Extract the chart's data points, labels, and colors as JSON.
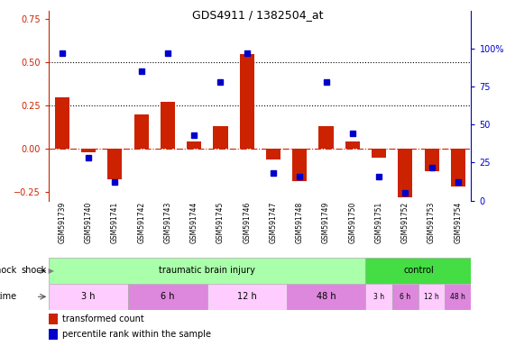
{
  "title": "GDS4911 / 1382504_at",
  "samples": [
    "GSM591739",
    "GSM591740",
    "GSM591741",
    "GSM591742",
    "GSM591743",
    "GSM591744",
    "GSM591745",
    "GSM591746",
    "GSM591747",
    "GSM591748",
    "GSM591749",
    "GSM591750",
    "GSM591751",
    "GSM591752",
    "GSM591753",
    "GSM591754"
  ],
  "red_values": [
    0.3,
    -0.02,
    -0.175,
    0.2,
    0.27,
    0.04,
    0.13,
    0.55,
    -0.06,
    -0.185,
    0.13,
    0.04,
    -0.05,
    -0.28,
    -0.13,
    -0.22
  ],
  "blue_values": [
    97,
    28,
    12,
    85,
    97,
    43,
    78,
    97,
    18,
    16,
    78,
    44,
    16,
    5,
    22,
    12
  ],
  "ylim_left": [
    -0.3,
    0.8
  ],
  "ylim_right": [
    0,
    125
  ],
  "yticks_left": [
    -0.25,
    0.0,
    0.25,
    0.5,
    0.75
  ],
  "yticks_right": [
    0,
    25,
    50,
    75,
    100
  ],
  "hlines": [
    0.25,
    0.5
  ],
  "shock_tbi_label": "traumatic brain injury",
  "shock_ctrl_label": "control",
  "shock_row_color_tbi": "#aaffaa",
  "shock_row_color_ctrl": "#44dd44",
  "time_row_color_light": "#ffccff",
  "time_row_color_dark": "#dd88dd",
  "bar_color_red": "#cc2200",
  "bar_color_blue": "#0000cc",
  "legend_red": "transformed count",
  "legend_blue": "percentile rank within the sample",
  "tbi_count": 12,
  "ctrl_count": 4,
  "tbi_times": [
    [
      "3 h",
      3
    ],
    [
      "6 h",
      3
    ],
    [
      "12 h",
      3
    ],
    [
      "48 h",
      3
    ]
  ],
  "ctrl_times": [
    [
      "3 h",
      1
    ],
    [
      "6 h",
      1
    ],
    [
      "12 h",
      1
    ],
    [
      "48 h",
      1
    ]
  ]
}
